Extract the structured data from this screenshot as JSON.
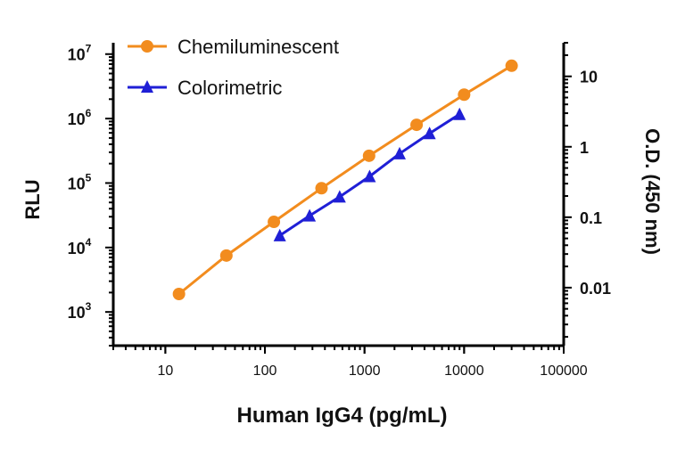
{
  "chart_data": {
    "type": "line",
    "xlabel": "Human IgG4 (pg/mL)",
    "ylabel": "RLU",
    "y2label": "O.D. (450 nm)",
    "x_scale": "log",
    "y_scale": "log",
    "y2_scale": "log",
    "xlim": [
      3,
      100000
    ],
    "ylim": [
      300,
      15000000
    ],
    "y2lim": [
      0.0015,
      30
    ],
    "x_ticks": [
      {
        "value": 10,
        "label": "10"
      },
      {
        "value": 100,
        "label": "100"
      },
      {
        "value": 1000,
        "label": "1000"
      },
      {
        "value": 10000,
        "label": "10000"
      },
      {
        "value": 100000,
        "label": "100000"
      }
    ],
    "y_ticks": [
      {
        "value": 1000,
        "base": "10",
        "exp": "3"
      },
      {
        "value": 10000,
        "base": "10",
        "exp": "4"
      },
      {
        "value": 100000,
        "base": "10",
        "exp": "5"
      },
      {
        "value": 1000000,
        "base": "10",
        "exp": "6"
      },
      {
        "value": 10000000,
        "base": "10",
        "exp": "7"
      }
    ],
    "y2_ticks": [
      {
        "value": 0.01,
        "label": "0.01"
      },
      {
        "value": 0.1,
        "label": "0.1"
      },
      {
        "value": 1,
        "label": "1"
      },
      {
        "value": 10,
        "label": "10"
      }
    ],
    "legend_position": "top-left",
    "series": [
      {
        "name": "Chemiluminescent",
        "axis": "left",
        "color": "#F28C1E",
        "marker": "circle",
        "x": [
          13.7,
          41,
          123,
          370,
          1111,
          3333,
          10000,
          30000
        ],
        "y": [
          1900,
          7500,
          25000,
          83000,
          265000,
          800000,
          2350000,
          6600000
        ]
      },
      {
        "name": "Colorimetric",
        "axis": "right",
        "color": "#1F1FD6",
        "marker": "triangle",
        "x": [
          141,
          281,
          563,
          1125,
          2250,
          4500,
          9000
        ],
        "y": [
          0.055,
          0.105,
          0.195,
          0.38,
          0.8,
          1.55,
          2.9
        ]
      }
    ]
  }
}
